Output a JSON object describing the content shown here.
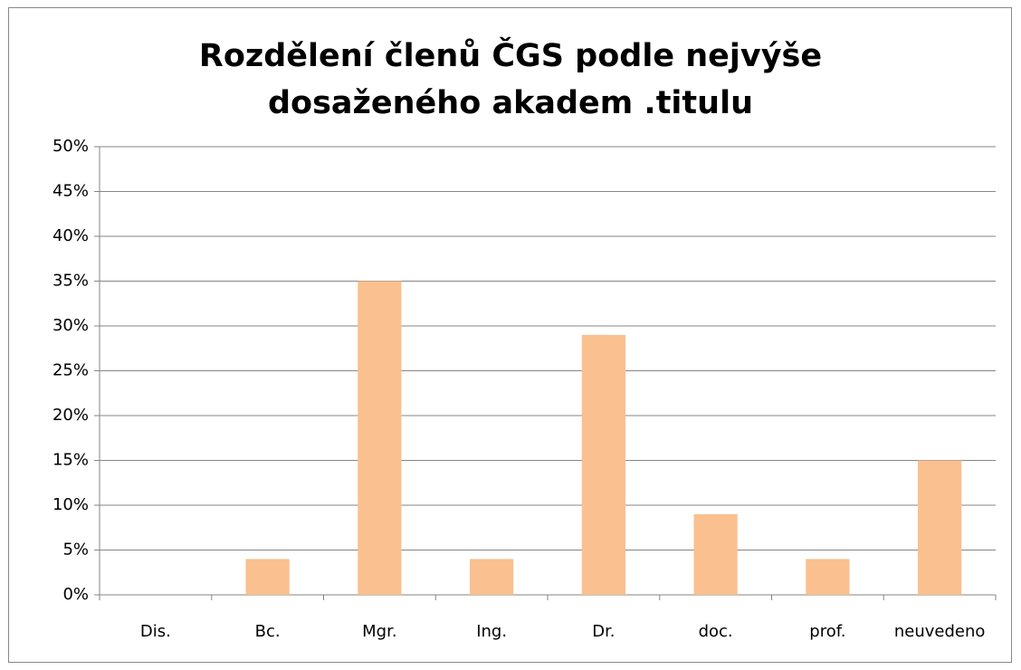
{
  "chart_data": {
    "type": "bar",
    "title": "Rozdělení členů ČGS podle nejvýše dosaženého akadem .titulu",
    "categories": [
      "Dis.",
      "Bc.",
      "Mgr.",
      "Ing.",
      "Dr.",
      "doc.",
      "prof.",
      "neuvedeno"
    ],
    "values": [
      0,
      4,
      35,
      4,
      29,
      9,
      4,
      15
    ],
    "color": "#fac08f",
    "ylim": [
      0,
      50
    ],
    "yticks": [
      {
        "value": 0,
        "label": "0%"
      },
      {
        "value": 5,
        "label": "5%"
      },
      {
        "value": 10,
        "label": "10%"
      },
      {
        "value": 15,
        "label": "15%"
      },
      {
        "value": 20,
        "label": "20%"
      },
      {
        "value": 25,
        "label": "25%"
      },
      {
        "value": 30,
        "label": "30%"
      },
      {
        "value": 35,
        "label": "35%"
      },
      {
        "value": 40,
        "label": "40%"
      },
      {
        "value": 45,
        "label": "45%"
      },
      {
        "value": 50,
        "label": "50%"
      }
    ],
    "grid": true
  }
}
